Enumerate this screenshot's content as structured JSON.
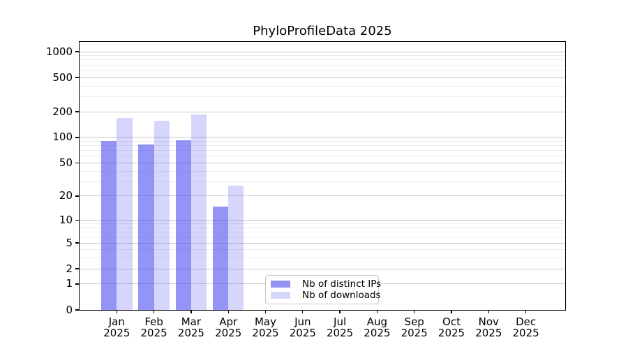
{
  "title": "PhyloProfileData 2025",
  "colors": {
    "ips_bar": "rgba(82,82,242,0.62)",
    "downloads_bar": "rgba(82,82,242,0.24)",
    "major_grid": "#c8c8c8",
    "minor_grid": "#ededed",
    "axis": "#000000",
    "legend_border": "#c9c9c9",
    "background": "#ffffff",
    "text": "#000000"
  },
  "chart_data": {
    "type": "bar",
    "title": "PhyloProfileData 2025",
    "categories": [
      "Jan 2025",
      "Feb 2025",
      "Mar 2025",
      "Apr 2025",
      "May 2025",
      "Jun 2025",
      "Jul 2025",
      "Aug 2025",
      "Sep 2025",
      "Oct 2025",
      "Nov 2025",
      "Dec 2025"
    ],
    "series": [
      {
        "name": "Nb of distinct IPs",
        "color": "rgba(82,82,242,0.62)",
        "values": [
          90,
          82,
          92,
          15,
          0,
          0,
          0,
          0,
          0,
          0,
          0,
          0
        ]
      },
      {
        "name": "Nb of downloads",
        "color": "rgba(82,82,242,0.24)",
        "values": [
          170,
          156,
          186,
          27,
          0,
          0,
          0,
          0,
          0,
          0,
          0,
          0
        ]
      }
    ],
    "xlabel": "",
    "ylabel": "",
    "y_scale": "log1p",
    "y_ticks": [
      0,
      1,
      2,
      5,
      10,
      20,
      50,
      100,
      200,
      500,
      1000
    ],
    "y_minor_gridlines": [
      3,
      4,
      6,
      7,
      8,
      9,
      30,
      40,
      60,
      70,
      80,
      90,
      300,
      400,
      600,
      700,
      800,
      900
    ],
    "ylim": [
      0,
      1300
    ],
    "grid": true,
    "legend_position": "inside-bottom-center"
  }
}
